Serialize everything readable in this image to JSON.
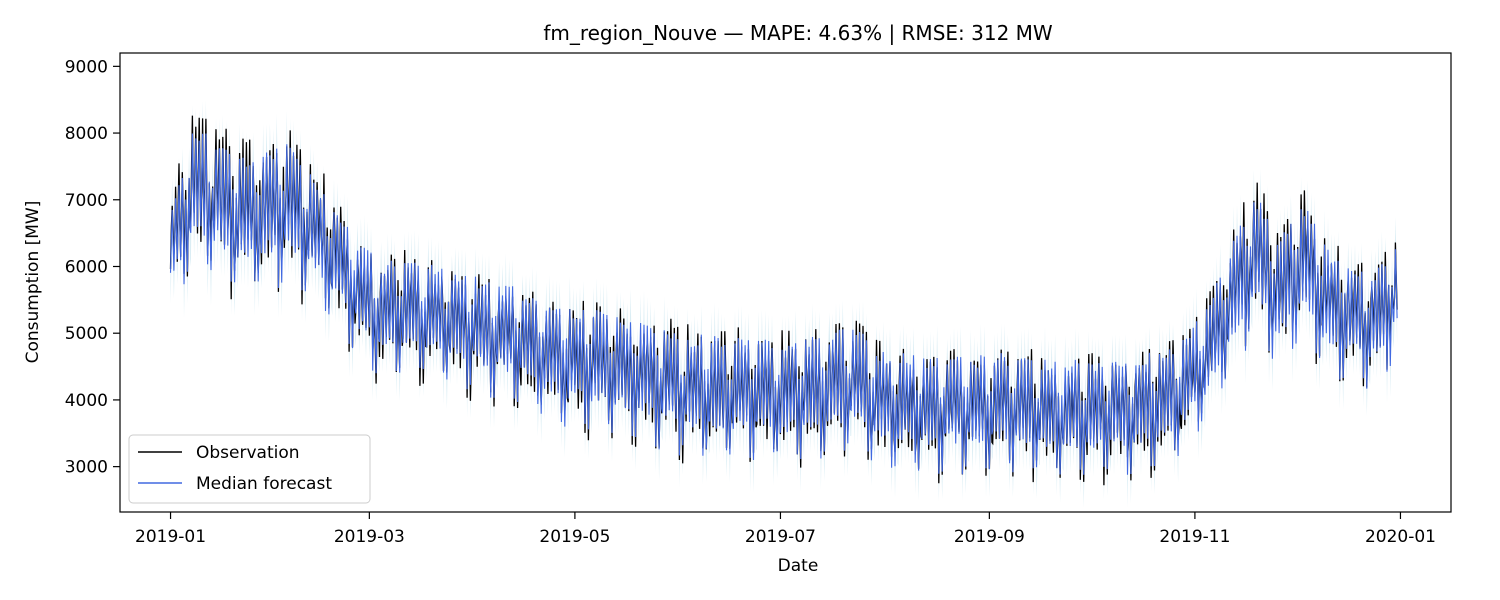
{
  "chart_data": {
    "type": "line",
    "title": "fm_region_Nouve — MAPE: 4.63% | RMSE: 312 MW",
    "xlabel": "Date",
    "ylabel": "Consumption [MW]",
    "xlim": [
      "2018-12-17",
      "2020-01-16"
    ],
    "ylim": [
      2320,
      9200
    ],
    "x_ticks": [
      "2019-01",
      "2019-03",
      "2019-05",
      "2019-07",
      "2019-09",
      "2019-11",
      "2020-01"
    ],
    "y_ticks": [
      3000,
      4000,
      5000,
      6000,
      7000,
      8000,
      9000
    ],
    "grid": false,
    "legend": {
      "position": "lower-left",
      "entries": [
        "Observation",
        "Median forecast"
      ]
    },
    "series": [
      {
        "name": "Observation",
        "color": "#000000",
        "x": [
          "2019-01-01",
          "2019-01-08",
          "2019-01-15",
          "2019-01-22",
          "2019-01-29",
          "2019-02-05",
          "2019-02-12",
          "2019-02-19",
          "2019-02-26",
          "2019-03-05",
          "2019-03-12",
          "2019-03-19",
          "2019-03-26",
          "2019-04-02",
          "2019-04-09",
          "2019-04-16",
          "2019-04-23",
          "2019-04-30",
          "2019-05-07",
          "2019-05-14",
          "2019-05-21",
          "2019-05-28",
          "2019-06-04",
          "2019-06-11",
          "2019-06-18",
          "2019-06-25",
          "2019-07-02",
          "2019-07-09",
          "2019-07-16",
          "2019-07-23",
          "2019-07-30",
          "2019-08-06",
          "2019-08-13",
          "2019-08-20",
          "2019-08-27",
          "2019-09-03",
          "2019-09-10",
          "2019-09-17",
          "2019-09-24",
          "2019-10-01",
          "2019-10-08",
          "2019-10-15",
          "2019-10-22",
          "2019-10-29",
          "2019-11-05",
          "2019-11-12",
          "2019-11-19",
          "2019-11-26",
          "2019-12-03",
          "2019-12-10",
          "2019-12-17",
          "2019-12-24",
          "2019-12-31"
        ],
        "y": [
          6300,
          7300,
          7100,
          6800,
          6900,
          7000,
          6600,
          6200,
          5600,
          5300,
          5400,
          5300,
          5200,
          5100,
          5000,
          4900,
          4700,
          4600,
          4550,
          4500,
          4400,
          4300,
          4200,
          4150,
          4150,
          4150,
          4100,
          4150,
          4200,
          4300,
          4000,
          3950,
          3900,
          3900,
          3900,
          3950,
          3900,
          3850,
          3850,
          3850,
          3850,
          3900,
          4000,
          4200,
          4700,
          5600,
          6300,
          5600,
          6200,
          5500,
          5300,
          5200,
          5700
        ],
        "amplitude": [
          700,
          1000,
          1000,
          1000,
          1000,
          1000,
          900,
          900,
          800,
          800,
          800,
          800,
          800,
          800,
          800,
          800,
          800,
          850,
          850,
          850,
          850,
          850,
          850,
          850,
          850,
          850,
          850,
          850,
          850,
          850,
          800,
          800,
          800,
          800,
          800,
          800,
          800,
          800,
          800,
          800,
          800,
          800,
          800,
          800,
          800,
          900,
          1000,
          900,
          1000,
          900,
          800,
          800,
          800
        ]
      },
      {
        "name": "Median forecast",
        "color": "#4169e1",
        "band_color": "#add8e6",
        "x": [
          "2019-01-01",
          "2019-01-08",
          "2019-01-15",
          "2019-01-22",
          "2019-01-29",
          "2019-02-05",
          "2019-02-12",
          "2019-02-19",
          "2019-02-26",
          "2019-03-05",
          "2019-03-12",
          "2019-03-19",
          "2019-03-26",
          "2019-04-02",
          "2019-04-09",
          "2019-04-16",
          "2019-04-23",
          "2019-04-30",
          "2019-05-07",
          "2019-05-14",
          "2019-05-21",
          "2019-05-28",
          "2019-06-04",
          "2019-06-11",
          "2019-06-18",
          "2019-06-25",
          "2019-07-02",
          "2019-07-09",
          "2019-07-16",
          "2019-07-23",
          "2019-07-30",
          "2019-08-06",
          "2019-08-13",
          "2019-08-20",
          "2019-08-27",
          "2019-09-03",
          "2019-09-10",
          "2019-09-17",
          "2019-09-24",
          "2019-10-01",
          "2019-10-08",
          "2019-10-15",
          "2019-10-22",
          "2019-10-29",
          "2019-11-05",
          "2019-11-12",
          "2019-11-19",
          "2019-11-26",
          "2019-12-03",
          "2019-12-10",
          "2019-12-17",
          "2019-12-24",
          "2019-12-31"
        ],
        "y": [
          6250,
          7200,
          7000,
          6750,
          6850,
          6950,
          6550,
          6150,
          5600,
          5300,
          5400,
          5300,
          5200,
          5100,
          5000,
          4900,
          4700,
          4600,
          4550,
          4500,
          4400,
          4300,
          4200,
          4150,
          4150,
          4150,
          4100,
          4150,
          4200,
          4300,
          4000,
          3950,
          3900,
          3900,
          3900,
          3950,
          3900,
          3850,
          3850,
          3850,
          3850,
          3900,
          4000,
          4200,
          4700,
          5550,
          6200,
          5550,
          6100,
          5450,
          5250,
          5150,
          5650
        ],
        "amplitude": [
          650,
          900,
          900,
          900,
          900,
          900,
          800,
          800,
          750,
          750,
          750,
          750,
          750,
          750,
          750,
          750,
          750,
          800,
          800,
          800,
          800,
          800,
          800,
          800,
          800,
          800,
          800,
          800,
          800,
          800,
          750,
          750,
          750,
          750,
          750,
          750,
          750,
          750,
          750,
          750,
          750,
          750,
          750,
          750,
          750,
          850,
          900,
          850,
          900,
          850,
          750,
          750,
          750
        ]
      }
    ]
  }
}
